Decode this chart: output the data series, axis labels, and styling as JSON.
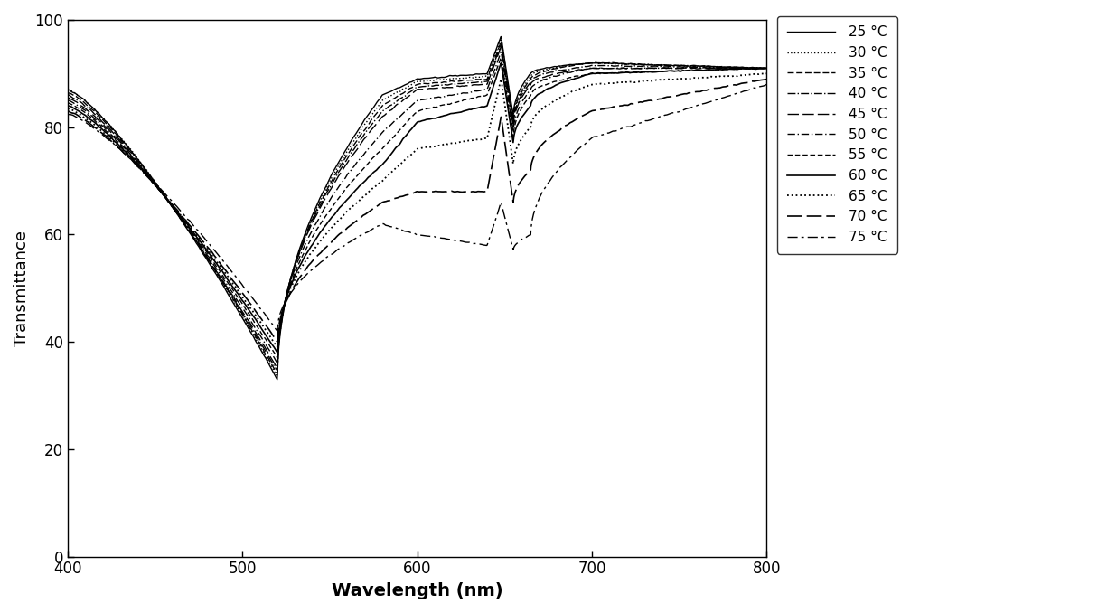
{
  "temperatures": [
    25,
    30,
    35,
    40,
    45,
    50,
    55,
    60,
    65,
    70,
    75
  ],
  "wavelength_range": [
    400,
    800
  ],
  "xlim": [
    400,
    800
  ],
  "ylim": [
    0,
    100
  ],
  "xlabel": "Wavelength (nm)",
  "ylabel": "Transmittance",
  "xticks": [
    400,
    500,
    600,
    700,
    800
  ],
  "yticks": [
    0,
    20,
    40,
    60,
    80,
    100
  ],
  "legend_labels": [
    "25 °C",
    "30 °C",
    "35 °C",
    "40 °C",
    "45 °C",
    "50 °C",
    "55 °C",
    "60 °C",
    "65 °C",
    "70 °C",
    "75 °C"
  ],
  "background_color": "#ffffff",
  "figsize": [
    12.15,
    6.78
  ],
  "dpi": 100,
  "val_400": [
    87,
    87,
    86.5,
    86,
    85.5,
    85,
    84.5,
    84,
    83.5,
    83,
    82.5
  ],
  "val_520": [
    33,
    33.5,
    34,
    34.5,
    35,
    36,
    37,
    38,
    39,
    40,
    42
  ],
  "val_580": [
    86,
    85,
    84,
    83,
    82,
    79,
    76,
    73,
    70,
    66,
    62
  ],
  "val_600": [
    89,
    88.5,
    88,
    87.5,
    87,
    85,
    83,
    81,
    76,
    68,
    60
  ],
  "val_640": [
    90,
    89.5,
    89,
    88.5,
    88,
    87,
    86,
    84,
    78,
    68,
    58
  ],
  "val_648": [
    97,
    96.5,
    96,
    95.5,
    95,
    94,
    93,
    92,
    89,
    82,
    66
  ],
  "val_655": [
    82,
    81.5,
    81,
    80.5,
    80,
    79,
    78,
    77,
    73,
    66,
    57
  ],
  "val_665": [
    90,
    89.5,
    89,
    88.5,
    88,
    87,
    86,
    84,
    80,
    72,
    60
  ],
  "val_700": [
    92,
    92,
    92,
    91.5,
    91,
    91,
    90,
    90,
    88,
    83,
    78
  ],
  "val_800": [
    91,
    91,
    91,
    91,
    91,
    91,
    91,
    91,
    90,
    89,
    88
  ]
}
